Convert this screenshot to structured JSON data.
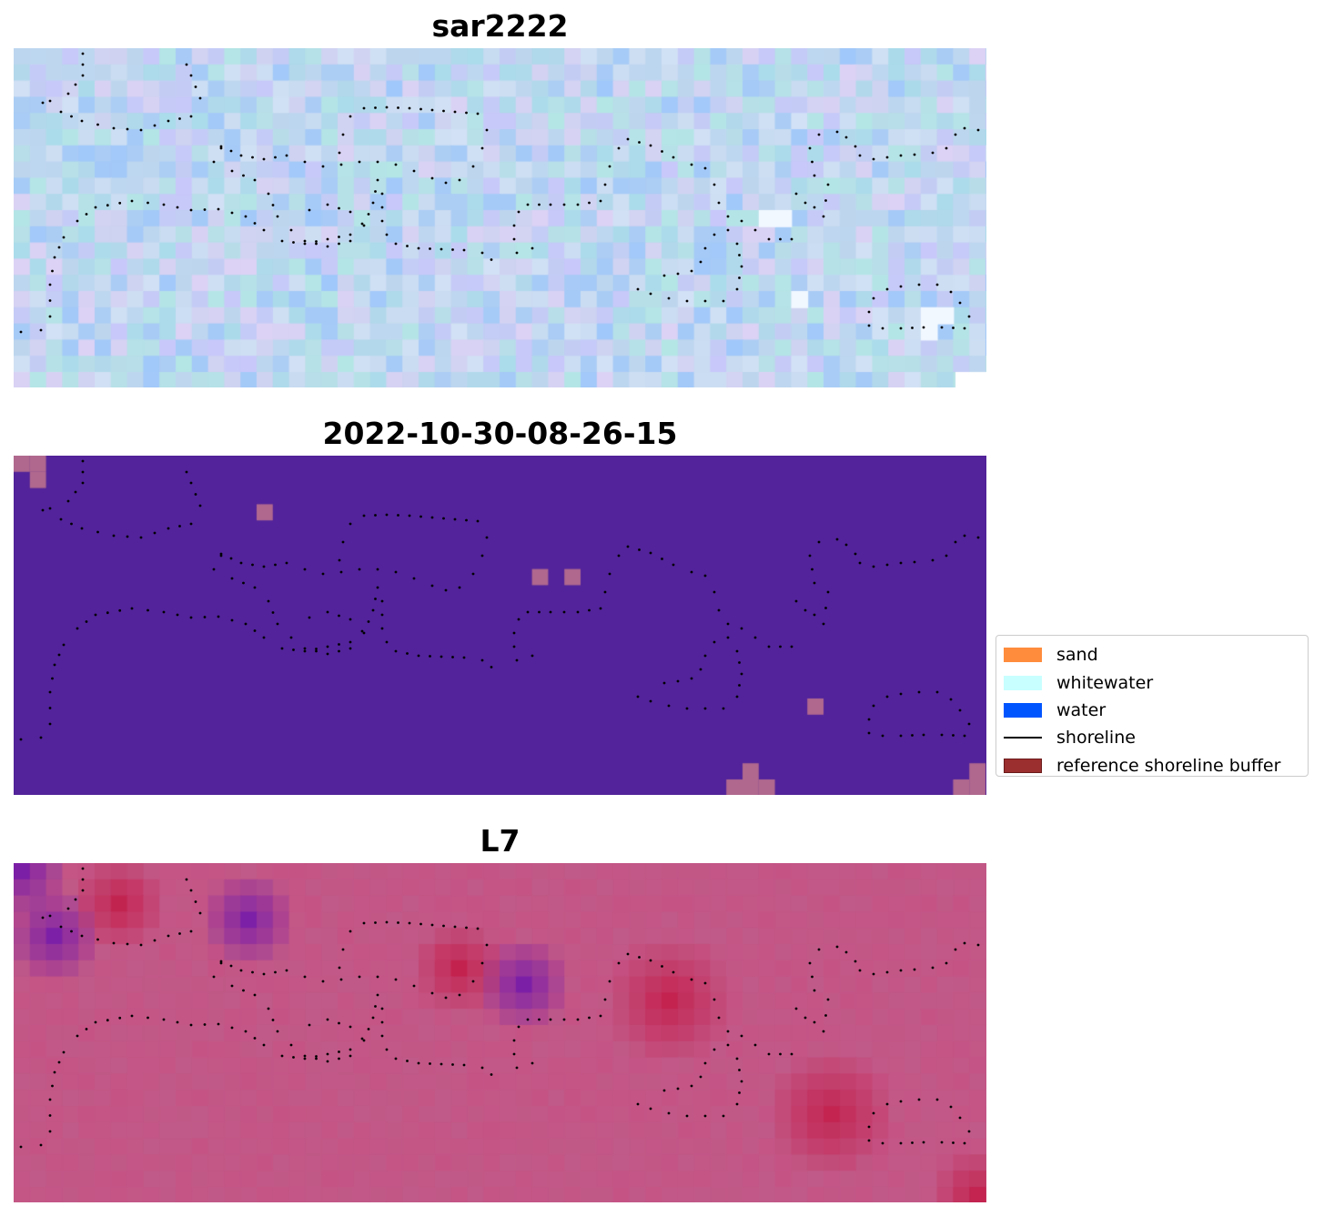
{
  "panels": [
    {
      "title": "sar2222"
    },
    {
      "title": "2022-10-30-08-26-15"
    },
    {
      "title": "L7"
    }
  ],
  "legend": {
    "items": [
      {
        "label": "sand",
        "kind": "patch",
        "color": "#ff8c3c"
      },
      {
        "label": "whitewater",
        "kind": "patch",
        "color": "#c8ffff"
      },
      {
        "label": "water",
        "kind": "patch",
        "color": "#0055ff"
      },
      {
        "label": "shoreline",
        "kind": "line",
        "color": "#000000"
      },
      {
        "label": "reference shoreline buffer",
        "kind": "patch",
        "color": "#9b2e2e"
      }
    ]
  },
  "colors": {
    "sar_base": "#bcd4ec",
    "classification_background": "#52239a",
    "classification_highlight": "#b0688e",
    "l7_base": "#c05a88",
    "l7_purple": "#6a12b0",
    "l7_red": "#c4002a"
  }
}
